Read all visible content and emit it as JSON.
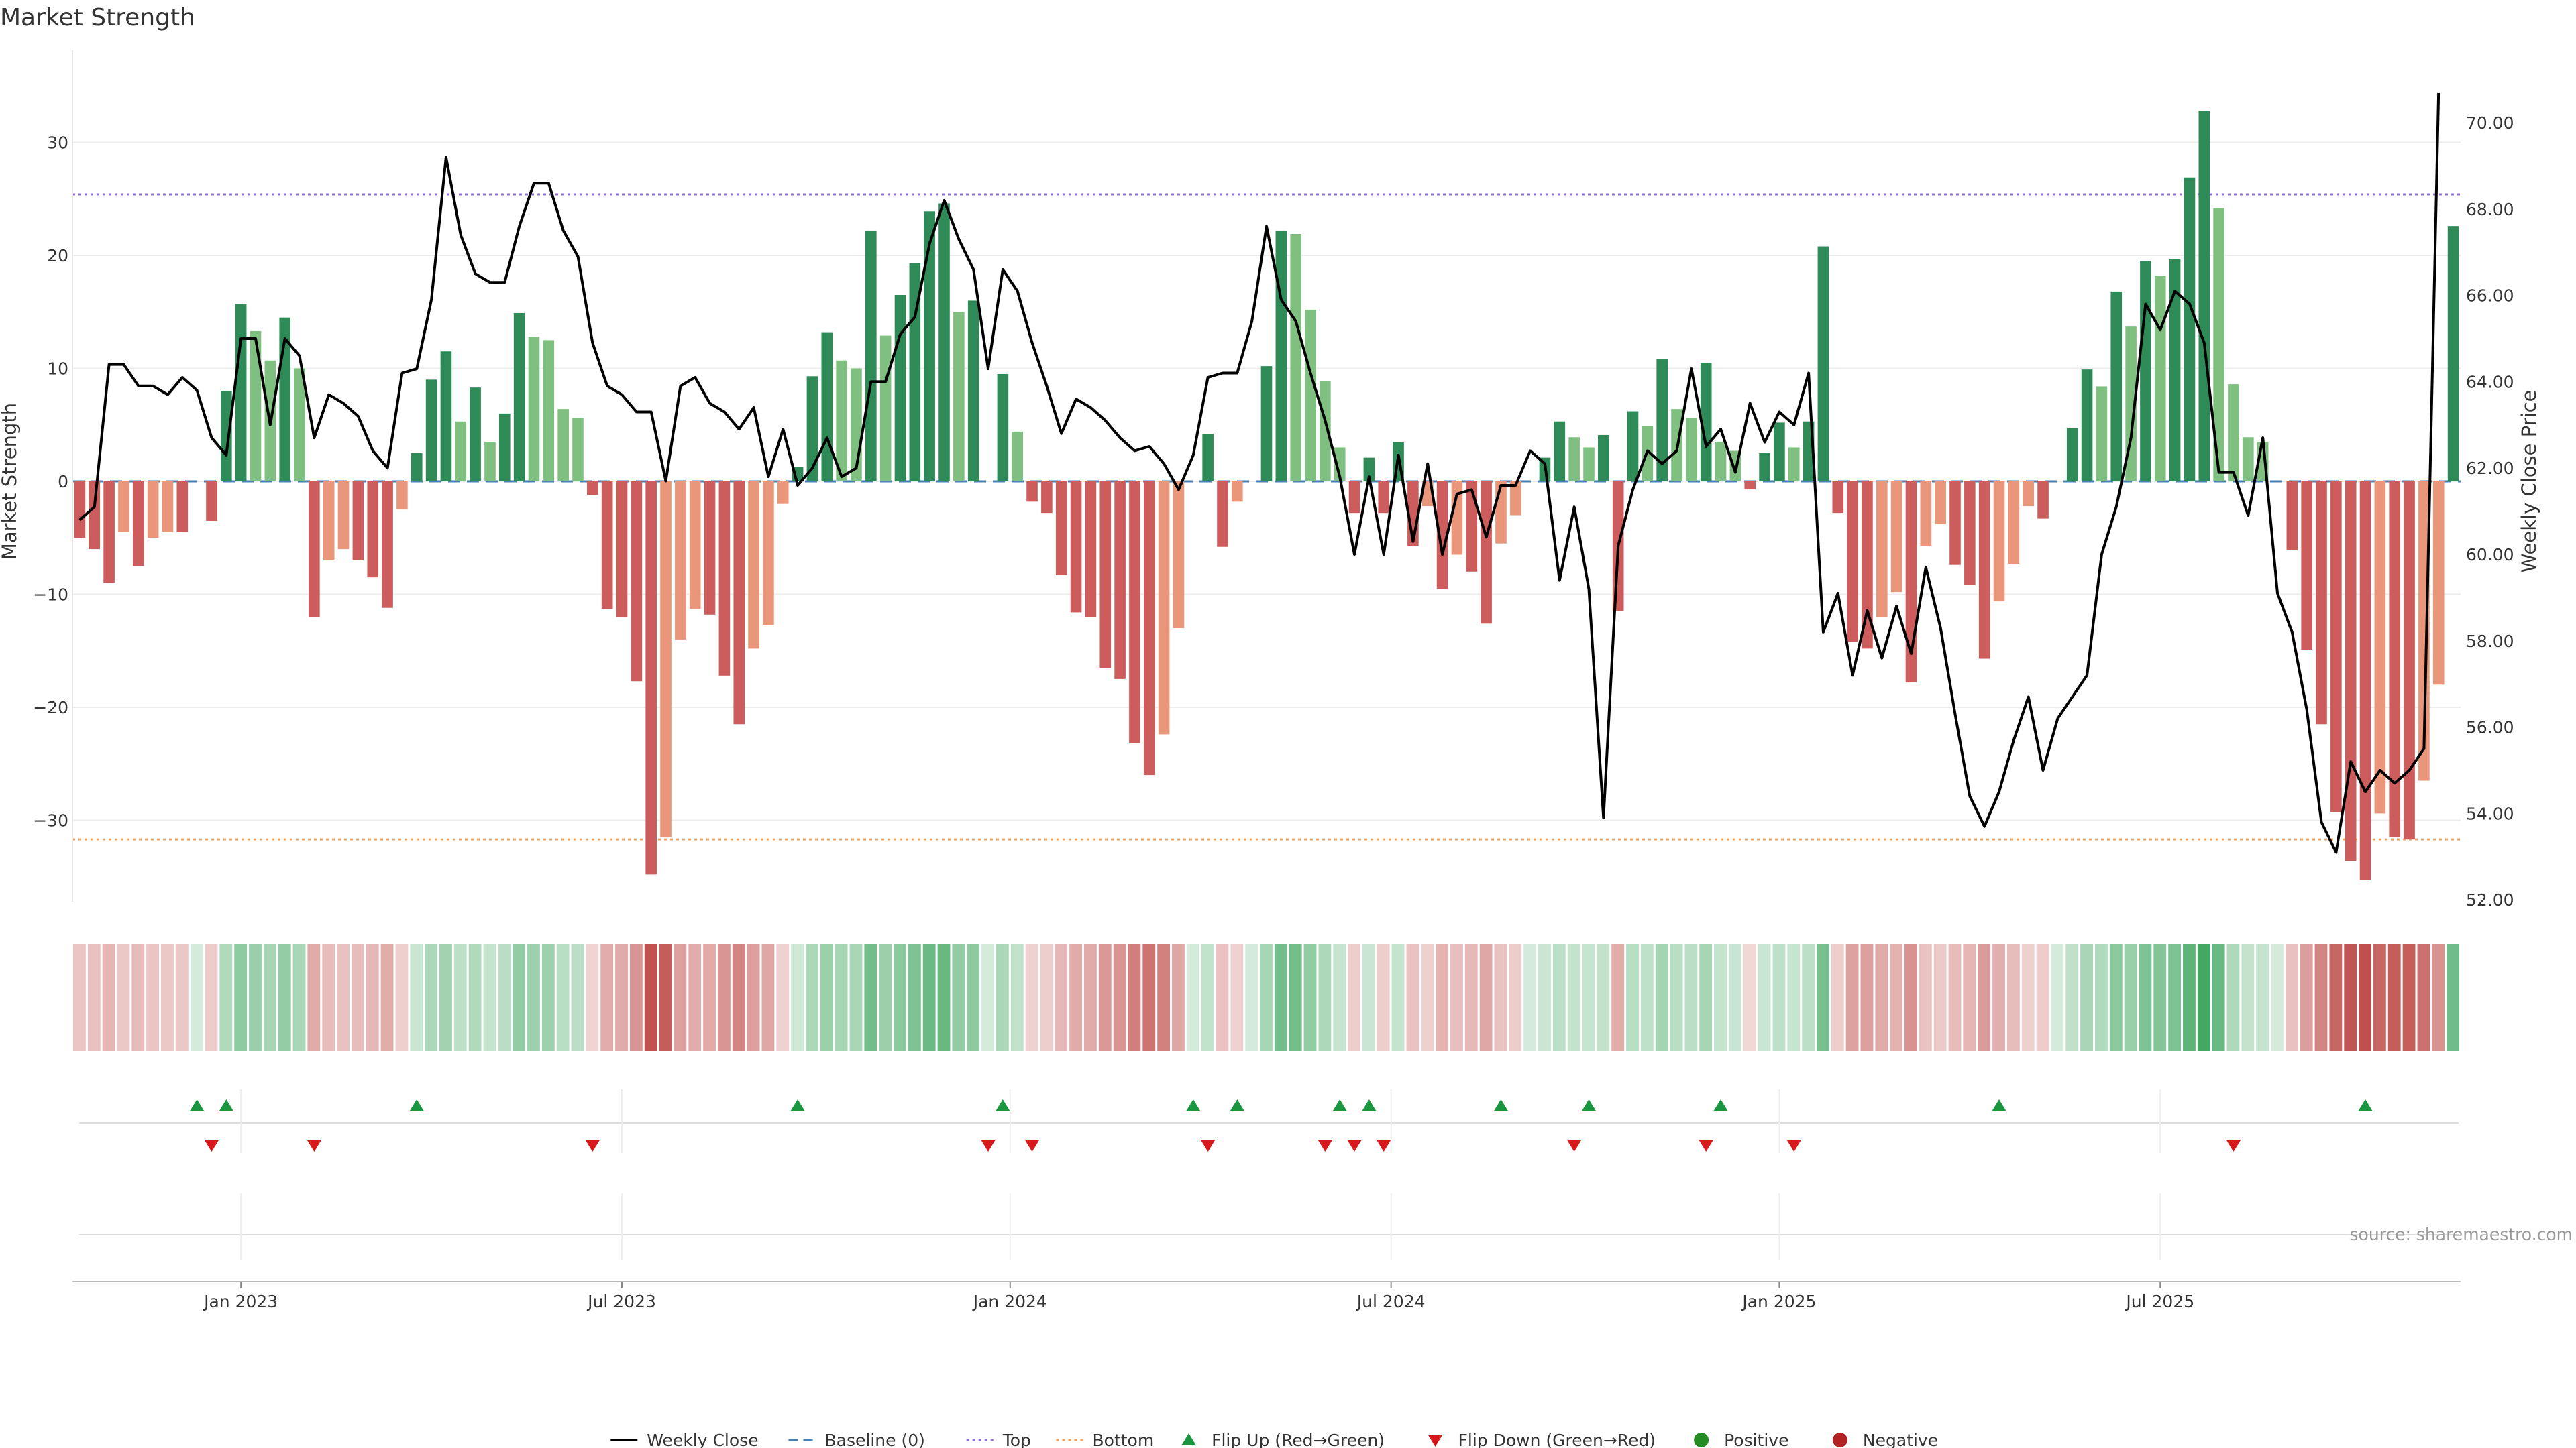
{
  "chart_data": {
    "type": "bar+line",
    "title": "Market Strength",
    "ylabel_left": "Market Strength",
    "ylabel_right": "Weekly Close Price",
    "ylim_left": [
      -38,
      38
    ],
    "ylim_right": [
      52.0,
      71.0
    ],
    "yticks_left": [
      "30",
      "20",
      "10",
      "0",
      "−10",
      "−20",
      "−30"
    ],
    "yticks_left_values": [
      30,
      20,
      10,
      0,
      -10,
      -20,
      -30
    ],
    "yticks_right": [
      "70.00",
      "68.00",
      "66.00",
      "64.00",
      "62.00",
      "60.00",
      "58.00",
      "56.00",
      "54.00",
      "52.00"
    ],
    "yticks_right_values": [
      70,
      68,
      66,
      64,
      62,
      60,
      58,
      56,
      54,
      52
    ],
    "x_ticks": [
      {
        "label": "Jan 2023",
        "week": 11
      },
      {
        "label": "Jul 2023",
        "week": 37
      },
      {
        "label": "Jan 2024",
        "week": 63.5
      },
      {
        "label": "Jul 2024",
        "week": 89.5
      },
      {
        "label": "Jan 2025",
        "week": 116
      },
      {
        "label": "Jul 2025",
        "week": 142
      }
    ],
    "top_line": 25.4,
    "bottom_line": -31.7,
    "strength": [
      -5,
      -6,
      -9,
      -4.5,
      -7.5,
      -5,
      -4.5,
      -4.5,
      0,
      -3.5,
      8,
      15.7,
      13.3,
      10.7,
      14.5,
      10,
      -12,
      -7,
      -6,
      -7,
      -8.5,
      -11.2,
      -2.5,
      2.5,
      9,
      11.5,
      5.3,
      8.3,
      3.5,
      6,
      14.9,
      12.8,
      12.5,
      6.4,
      5.6,
      -1.2,
      -11.3,
      -12,
      -17.7,
      -34.8,
      -31.5,
      -14,
      -11.3,
      -11.8,
      -17.2,
      -21.5,
      -14.8,
      -12.7,
      -2,
      1.3,
      9.3,
      13.2,
      10.7,
      10,
      22.2,
      12.9,
      16.5,
      19.3,
      23.9,
      24.6,
      15,
      16,
      0,
      9.5,
      4.4,
      -1.8,
      -2.8,
      -8.3,
      -11.6,
      -12,
      -16.5,
      -17.5,
      -23.2,
      -26,
      -22.4,
      -13,
      0,
      4.2,
      -5.8,
      -1.8,
      0,
      10.2,
      22.2,
      21.9,
      15.2,
      8.9,
      3,
      -2.8,
      2.1,
      -2.8,
      3.5,
      -5.7,
      -2.2,
      -9.5,
      -6.5,
      -8,
      -12.6,
      -5.5,
      -3,
      0,
      2.1,
      5.3,
      3.9,
      3,
      4.1,
      -11.5,
      6.2,
      4.9,
      10.8,
      6.4,
      5.6,
      10.5,
      3.5,
      2.7,
      -0.7,
      2.5,
      5.2,
      3,
      5.3,
      20.8,
      -2.8,
      -14.2,
      -14.8,
      -12,
      -9.8,
      -17.8,
      -5.7,
      -3.8,
      -7.4,
      -9.2,
      -15.7,
      -10.6,
      -7.3,
      -2.2,
      -3.3,
      0,
      4.7,
      9.9,
      8.4,
      16.8,
      13.7,
      19.5,
      18.2,
      19.7,
      26.9,
      32.8,
      24.2,
      8.6,
      3.9,
      3.5,
      0,
      -6.1,
      -14.9,
      -21.5,
      -29.3,
      -33.6,
      -35.3,
      -29.4,
      -31.5,
      -31.7,
      -26.5,
      -18,
      22.6
    ],
    "price": [
      60.8,
      61.1,
      64.4,
      64.4,
      63.9,
      63.9,
      63.7,
      64.1,
      63.8,
      62.7,
      62.3,
      65,
      65,
      63,
      65,
      64.6,
      62.7,
      63.7,
      63.5,
      63.2,
      62.4,
      62,
      64.2,
      64.3,
      65.9,
      69.2,
      67.4,
      66.5,
      66.3,
      66.3,
      67.6,
      68.6,
      68.6,
      67.5,
      66.9,
      64.9,
      63.9,
      63.7,
      63.3,
      63.3,
      61.7,
      63.9,
      64.1,
      63.5,
      63.3,
      62.9,
      63.4,
      61.8,
      62.9,
      61.6,
      62,
      62.7,
      61.8,
      62,
      64,
      64,
      65.1,
      65.5,
      67.2,
      68.2,
      67.3,
      66.6,
      64.3,
      66.6,
      66.1,
      64.9,
      63.9,
      62.8,
      63.6,
      63.4,
      63.1,
      62.7,
      62.4,
      62.5,
      62.1,
      61.5,
      62.3,
      64.1,
      64.2,
      64.2,
      65.4,
      67.6,
      65.9,
      65.4,
      64.2,
      63.1,
      61.8,
      60,
      61.8,
      60,
      62.3,
      60.3,
      62.1,
      60,
      61.4,
      61.5,
      60.4,
      61.6,
      61.6,
      62.4,
      62.1,
      59.4,
      61.1,
      59.2,
      53.9,
      60.2,
      61.5,
      62.4,
      62.1,
      62.4,
      64.3,
      62.5,
      62.9,
      61.9,
      63.5,
      62.6,
      63.3,
      63,
      64.2,
      58.2,
      59.1,
      57.2,
      58.7,
      57.6,
      58.8,
      57.7,
      59.7,
      58.3,
      56.3,
      54.4,
      53.7,
      54.5,
      55.7,
      56.7,
      55,
      56.2,
      56.7,
      57.2,
      60,
      61.1,
      62.7,
      65.8,
      65.2,
      66.1,
      65.8,
      64.9,
      61.9,
      61.9,
      60.9,
      62.7,
      59.1,
      58.2,
      56.4,
      53.8,
      53.1,
      55.2,
      54.5,
      55,
      54.7,
      55,
      55.5,
      70.7
    ],
    "flip_up_weeks": [
      8,
      10,
      23,
      49,
      63,
      76,
      79,
      86,
      88,
      97,
      103,
      112,
      131,
      156
    ],
    "flip_down_weeks": [
      9,
      16,
      35,
      62,
      65,
      77,
      85,
      87,
      89,
      102,
      111,
      117,
      147
    ],
    "colors": {
      "strong_green": "#2e8b57",
      "light_green": "#7fbf7f",
      "strong_red": "#cd5c5c",
      "light_red": "#e9967a",
      "price_line": "#000000",
      "baseline": "#4682b4",
      "top": "#9370db",
      "bottom": "#f4a460",
      "flip_up": "#1a9641",
      "flip_down": "#d7191c",
      "positive": "#228b22",
      "negative": "#b22222"
    },
    "legend": [
      {
        "label": "Weekly Close",
        "kind": "line-solid",
        "color": "#000000"
      },
      {
        "label": "Baseline (0)",
        "kind": "line-dash",
        "color": "#4682b4"
      },
      {
        "label": "Top",
        "kind": "line-dot",
        "color": "#9370db"
      },
      {
        "label": "Bottom",
        "kind": "line-dot",
        "color": "#f4a460"
      },
      {
        "label": "Flip Up (Red→Green)",
        "kind": "tri-up",
        "color": "#1a9641"
      },
      {
        "label": "Flip Down (Green→Red)",
        "kind": "tri-down",
        "color": "#d7191c"
      },
      {
        "label": "Positive",
        "kind": "dot",
        "color": "#228b22"
      },
      {
        "label": "Negative",
        "kind": "dot",
        "color": "#b22222"
      }
    ],
    "source": "source: sharemaestro.com"
  }
}
